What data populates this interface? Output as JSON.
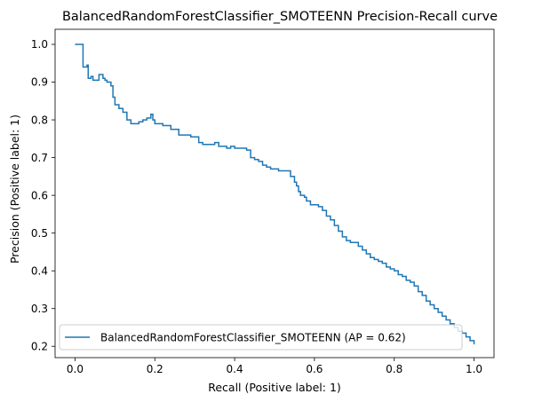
{
  "chart_data": {
    "type": "line",
    "title": "BalancedRandomForestClassifier_SMOTEENN Precision-Recall curve",
    "xlabel": "Recall (Positive label: 1)",
    "ylabel": "Precision (Positive label: 1)",
    "xlim": [
      -0.05,
      1.05
    ],
    "ylim": [
      0.17,
      1.04
    ],
    "x_ticks": [
      "0.0",
      "0.2",
      "0.4",
      "0.6",
      "0.8",
      "1.0"
    ],
    "y_ticks": [
      "0.2",
      "0.3",
      "0.4",
      "0.5",
      "0.6",
      "0.7",
      "0.8",
      "0.9",
      "1.0"
    ],
    "grid": false,
    "legend": {
      "placement": "lower-left",
      "entries": [
        "BalancedRandomForestClassifier_SMOTEENN (AP = 0.62)"
      ]
    },
    "colors": {
      "series": "#1f77b4"
    },
    "series": [
      {
        "name": "BalancedRandomForestClassifier_SMOTEENN (AP = 0.62)",
        "step": "post",
        "points": [
          [
            0.0,
            1.0
          ],
          [
            0.02,
            1.0
          ],
          [
            0.02,
            0.94
          ],
          [
            0.03,
            0.94
          ],
          [
            0.03,
            0.945
          ],
          [
            0.033,
            0.945
          ],
          [
            0.033,
            0.91
          ],
          [
            0.04,
            0.91
          ],
          [
            0.04,
            0.915
          ],
          [
            0.045,
            0.915
          ],
          [
            0.045,
            0.905
          ],
          [
            0.06,
            0.905
          ],
          [
            0.06,
            0.92
          ],
          [
            0.07,
            0.92
          ],
          [
            0.07,
            0.91
          ],
          [
            0.075,
            0.91
          ],
          [
            0.075,
            0.905
          ],
          [
            0.08,
            0.905
          ],
          [
            0.08,
            0.9
          ],
          [
            0.09,
            0.9
          ],
          [
            0.09,
            0.89
          ],
          [
            0.095,
            0.89
          ],
          [
            0.095,
            0.86
          ],
          [
            0.1,
            0.86
          ],
          [
            0.1,
            0.84
          ],
          [
            0.11,
            0.84
          ],
          [
            0.11,
            0.83
          ],
          [
            0.12,
            0.83
          ],
          [
            0.12,
            0.82
          ],
          [
            0.13,
            0.82
          ],
          [
            0.13,
            0.8
          ],
          [
            0.14,
            0.8
          ],
          [
            0.14,
            0.79
          ],
          [
            0.15,
            0.79
          ],
          [
            0.15,
            0.79
          ],
          [
            0.16,
            0.79
          ],
          [
            0.16,
            0.795
          ],
          [
            0.17,
            0.795
          ],
          [
            0.17,
            0.8
          ],
          [
            0.18,
            0.8
          ],
          [
            0.18,
            0.805
          ],
          [
            0.19,
            0.805
          ],
          [
            0.19,
            0.815
          ],
          [
            0.195,
            0.815
          ],
          [
            0.195,
            0.8
          ],
          [
            0.2,
            0.8
          ],
          [
            0.2,
            0.79
          ],
          [
            0.22,
            0.79
          ],
          [
            0.22,
            0.785
          ],
          [
            0.24,
            0.785
          ],
          [
            0.24,
            0.775
          ],
          [
            0.26,
            0.775
          ],
          [
            0.26,
            0.76
          ],
          [
            0.29,
            0.76
          ],
          [
            0.29,
            0.755
          ],
          [
            0.31,
            0.755
          ],
          [
            0.31,
            0.74
          ],
          [
            0.32,
            0.74
          ],
          [
            0.32,
            0.735
          ],
          [
            0.35,
            0.735
          ],
          [
            0.35,
            0.74
          ],
          [
            0.36,
            0.74
          ],
          [
            0.36,
            0.73
          ],
          [
            0.38,
            0.73
          ],
          [
            0.38,
            0.725
          ],
          [
            0.39,
            0.725
          ],
          [
            0.39,
            0.73
          ],
          [
            0.4,
            0.73
          ],
          [
            0.4,
            0.725
          ],
          [
            0.43,
            0.725
          ],
          [
            0.43,
            0.72
          ],
          [
            0.44,
            0.72
          ],
          [
            0.44,
            0.7
          ],
          [
            0.45,
            0.7
          ],
          [
            0.45,
            0.695
          ],
          [
            0.46,
            0.695
          ],
          [
            0.46,
            0.69
          ],
          [
            0.47,
            0.69
          ],
          [
            0.47,
            0.68
          ],
          [
            0.48,
            0.68
          ],
          [
            0.48,
            0.675
          ],
          [
            0.49,
            0.675
          ],
          [
            0.49,
            0.67
          ],
          [
            0.51,
            0.67
          ],
          [
            0.51,
            0.665
          ],
          [
            0.54,
            0.665
          ],
          [
            0.54,
            0.65
          ],
          [
            0.55,
            0.65
          ],
          [
            0.55,
            0.635
          ],
          [
            0.555,
            0.635
          ],
          [
            0.555,
            0.625
          ],
          [
            0.56,
            0.625
          ],
          [
            0.56,
            0.61
          ],
          [
            0.565,
            0.61
          ],
          [
            0.565,
            0.6
          ],
          [
            0.575,
            0.6
          ],
          [
            0.575,
            0.595
          ],
          [
            0.58,
            0.595
          ],
          [
            0.58,
            0.585
          ],
          [
            0.59,
            0.585
          ],
          [
            0.59,
            0.575
          ],
          [
            0.61,
            0.575
          ],
          [
            0.61,
            0.57
          ],
          [
            0.62,
            0.57
          ],
          [
            0.62,
            0.56
          ],
          [
            0.63,
            0.56
          ],
          [
            0.63,
            0.545
          ],
          [
            0.64,
            0.545
          ],
          [
            0.64,
            0.535
          ],
          [
            0.65,
            0.535
          ],
          [
            0.65,
            0.52
          ],
          [
            0.66,
            0.52
          ],
          [
            0.66,
            0.505
          ],
          [
            0.67,
            0.505
          ],
          [
            0.67,
            0.49
          ],
          [
            0.68,
            0.49
          ],
          [
            0.68,
            0.48
          ],
          [
            0.69,
            0.48
          ],
          [
            0.69,
            0.475
          ],
          [
            0.71,
            0.475
          ],
          [
            0.71,
            0.465
          ],
          [
            0.72,
            0.465
          ],
          [
            0.72,
            0.455
          ],
          [
            0.73,
            0.455
          ],
          [
            0.73,
            0.445
          ],
          [
            0.74,
            0.445
          ],
          [
            0.74,
            0.435
          ],
          [
            0.75,
            0.435
          ],
          [
            0.75,
            0.43
          ],
          [
            0.76,
            0.43
          ],
          [
            0.76,
            0.425
          ],
          [
            0.77,
            0.425
          ],
          [
            0.77,
            0.42
          ],
          [
            0.78,
            0.42
          ],
          [
            0.78,
            0.41
          ],
          [
            0.79,
            0.41
          ],
          [
            0.79,
            0.405
          ],
          [
            0.8,
            0.405
          ],
          [
            0.8,
            0.4
          ],
          [
            0.81,
            0.4
          ],
          [
            0.81,
            0.39
          ],
          [
            0.82,
            0.39
          ],
          [
            0.82,
            0.385
          ],
          [
            0.83,
            0.385
          ],
          [
            0.83,
            0.375
          ],
          [
            0.84,
            0.375
          ],
          [
            0.84,
            0.37
          ],
          [
            0.85,
            0.37
          ],
          [
            0.85,
            0.36
          ],
          [
            0.86,
            0.36
          ],
          [
            0.86,
            0.345
          ],
          [
            0.87,
            0.345
          ],
          [
            0.87,
            0.335
          ],
          [
            0.88,
            0.335
          ],
          [
            0.88,
            0.32
          ],
          [
            0.89,
            0.32
          ],
          [
            0.89,
            0.31
          ],
          [
            0.9,
            0.31
          ],
          [
            0.9,
            0.3
          ],
          [
            0.91,
            0.3
          ],
          [
            0.91,
            0.29
          ],
          [
            0.92,
            0.29
          ],
          [
            0.92,
            0.28
          ],
          [
            0.93,
            0.28
          ],
          [
            0.93,
            0.27
          ],
          [
            0.94,
            0.27
          ],
          [
            0.94,
            0.26
          ],
          [
            0.95,
            0.26
          ],
          [
            0.95,
            0.25
          ],
          [
            0.96,
            0.25
          ],
          [
            0.96,
            0.24
          ],
          [
            0.97,
            0.24
          ],
          [
            0.97,
            0.235
          ],
          [
            0.98,
            0.235
          ],
          [
            0.98,
            0.225
          ],
          [
            0.99,
            0.225
          ],
          [
            0.99,
            0.215
          ],
          [
            1.0,
            0.215
          ],
          [
            1.0,
            0.205
          ]
        ]
      }
    ]
  }
}
